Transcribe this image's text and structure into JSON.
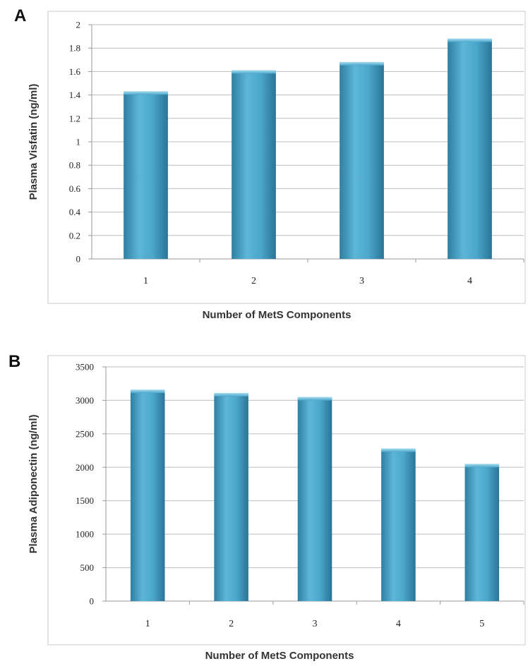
{
  "chart_data": [
    {
      "type": "bar",
      "panel": "A",
      "categories": [
        "1",
        "2",
        "3",
        "4"
      ],
      "values": [
        1.42,
        1.6,
        1.67,
        1.87
      ],
      "title": "",
      "xlabel": "Number of MetS Components",
      "ylabel": "Plasma Visfatin (ng/ml)",
      "ylim": [
        0,
        2
      ],
      "yticks": [
        "0",
        "0.2",
        "0.4",
        "0.6",
        "0.8",
        "1",
        "1.2",
        "1.4",
        "1.6",
        "1.8",
        "2"
      ],
      "grid": true,
      "legend": "none",
      "bar_color": "#4aa3c6"
    },
    {
      "type": "bar",
      "panel": "B",
      "categories": [
        "1",
        "2",
        "3",
        "4",
        "5"
      ],
      "values": [
        3140,
        3090,
        3030,
        2260,
        2030
      ],
      "title": "",
      "xlabel": "Number of MetS Components",
      "ylabel": "Plasma Adiponectin (ng/ml)",
      "ylim": [
        0,
        3500
      ],
      "yticks": [
        "0",
        "500",
        "1000",
        "1500",
        "2000",
        "2500",
        "3000",
        "3500"
      ],
      "grid": true,
      "legend": "none",
      "bar_color": "#4aa3c6"
    }
  ]
}
